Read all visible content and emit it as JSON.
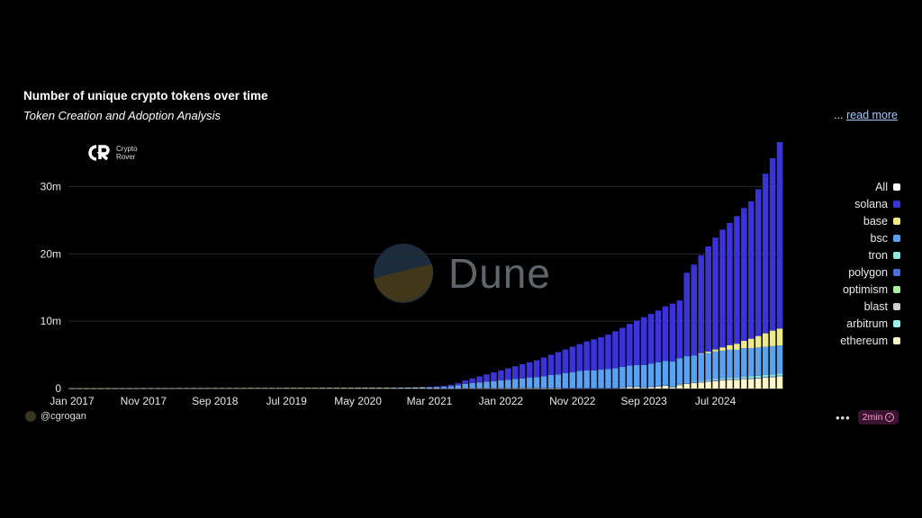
{
  "header": {
    "title": "Number of unique crypto tokens over time",
    "subtitle": "Token Creation and Adoption Analysis",
    "more_prefix": "...",
    "read_more": "read more"
  },
  "logo": {
    "line1": "Crypto",
    "line2": "Rover"
  },
  "watermark": {
    "text": "Dune"
  },
  "footer": {
    "author": "@cgrogan",
    "more": "•••",
    "badge": "2min"
  },
  "colors": {
    "background": "#000000",
    "All": "#ffffff",
    "solana": "#3a33d6",
    "base": "#eeea86",
    "bsc": "#5aa1f0",
    "tron": "#8fe6dd",
    "polygon": "#4a6fd8",
    "optimism": "#a6f0a0",
    "blast": "#cfcfcf",
    "arbitrum": "#9af2ee",
    "ethereum": "#fdf6c6"
  },
  "chart_data": {
    "type": "bar",
    "stacked": true,
    "title": "Number of unique crypto tokens over time",
    "subtitle": "Token Creation and Adoption Analysis",
    "x_start": "2017-01",
    "x_step": "1 month",
    "x_tick_labels": [
      "Jan 2017",
      "Nov 2017",
      "Sep 2018",
      "Jul 2019",
      "May 2020",
      "Mar 2021",
      "Jan 2022",
      "Nov 2022",
      "Sep 2023",
      "Jul 2024"
    ],
    "y_ticks": [
      0,
      10000000,
      20000000,
      30000000
    ],
    "y_tick_labels": [
      "0",
      "10m",
      "20m",
      "30m"
    ],
    "ylim": [
      0,
      37000000
    ],
    "grid": true,
    "legend": [
      "All",
      "solana",
      "base",
      "bsc",
      "tron",
      "polygon",
      "optimism",
      "blast",
      "arbitrum",
      "ethereum"
    ],
    "legend_placement": "right",
    "totals_millions": [
      0.02,
      0.02,
      0.02,
      0.02,
      0.02,
      0.03,
      0.03,
      0.03,
      0.03,
      0.03,
      0.04,
      0.04,
      0.04,
      0.04,
      0.04,
      0.05,
      0.05,
      0.05,
      0.05,
      0.05,
      0.06,
      0.06,
      0.06,
      0.06,
      0.06,
      0.07,
      0.07,
      0.07,
      0.07,
      0.07,
      0.08,
      0.08,
      0.08,
      0.08,
      0.08,
      0.09,
      0.09,
      0.09,
      0.09,
      0.09,
      0.1,
      0.1,
      0.1,
      0.1,
      0.1,
      0.12,
      0.13,
      0.15,
      0.17,
      0.2,
      0.25,
      0.3,
      0.4,
      0.55,
      0.8,
      1.2,
      1.5,
      1.8,
      2.1,
      2.4,
      2.7,
      3.0,
      3.3,
      3.6,
      3.9,
      4.2,
      4.6,
      5.0,
      5.4,
      5.8,
      6.2,
      6.6,
      7.0,
      7.3,
      7.6,
      8.0,
      8.5,
      9.0,
      9.6,
      10.1,
      10.6,
      11.1,
      11.6,
      12.2,
      12.6,
      13.1,
      17.2,
      18.4,
      19.8,
      21.1,
      22.4,
      23.6,
      24.6,
      25.6,
      26.8,
      27.8,
      29.6,
      31.9,
      34.2,
      36.6
    ],
    "series": [
      {
        "name": "solana",
        "values_millions": [
          0,
          0,
          0,
          0,
          0,
          0,
          0,
          0,
          0,
          0,
          0,
          0,
          0,
          0,
          0,
          0,
          0,
          0,
          0,
          0,
          0,
          0,
          0,
          0,
          0,
          0,
          0,
          0,
          0,
          0,
          0,
          0,
          0,
          0,
          0,
          0,
          0,
          0,
          0,
          0,
          0,
          0,
          0,
          0,
          0,
          0,
          0,
          0,
          0,
          0,
          0.05,
          0.1,
          0.15,
          0.2,
          0.3,
          0.5,
          0.7,
          0.9,
          1.1,
          1.3,
          1.5,
          1.7,
          1.9,
          2.1,
          2.3,
          2.5,
          2.8,
          3.0,
          3.3,
          3.5,
          3.8,
          4.0,
          4.3,
          4.6,
          4.8,
          5.1,
          5.5,
          5.8,
          6.2,
          6.6,
          7.0,
          7.3,
          7.6,
          8.0,
          8.2,
          8.5,
          12.1,
          13.2,
          14.3,
          15.3,
          16.2,
          17.0,
          17.7,
          18.4,
          19.2,
          19.9,
          21.4,
          23.2,
          25.2,
          27.3
        ]
      },
      {
        "name": "base",
        "values_millions": [
          0,
          0,
          0,
          0,
          0,
          0,
          0,
          0,
          0,
          0,
          0,
          0,
          0,
          0,
          0,
          0,
          0,
          0,
          0,
          0,
          0,
          0,
          0,
          0,
          0,
          0,
          0,
          0,
          0,
          0,
          0,
          0,
          0,
          0,
          0,
          0,
          0,
          0,
          0,
          0,
          0,
          0,
          0,
          0,
          0,
          0,
          0,
          0,
          0,
          0,
          0,
          0,
          0,
          0,
          0,
          0,
          0,
          0,
          0,
          0,
          0,
          0,
          0,
          0,
          0,
          0,
          0,
          0,
          0,
          0,
          0,
          0,
          0,
          0,
          0,
          0,
          0,
          0,
          0,
          0,
          0,
          0,
          0,
          0,
          0,
          0,
          0,
          0,
          0.1,
          0.2,
          0.3,
          0.5,
          0.7,
          0.9,
          1.1,
          1.4,
          1.7,
          2.0,
          2.3,
          2.5
        ]
      },
      {
        "name": "bsc",
        "values_millions": [
          0,
          0,
          0,
          0,
          0,
          0,
          0,
          0,
          0,
          0,
          0,
          0,
          0,
          0,
          0,
          0,
          0,
          0,
          0,
          0,
          0,
          0,
          0,
          0,
          0,
          0,
          0,
          0,
          0,
          0,
          0,
          0,
          0,
          0,
          0,
          0,
          0,
          0,
          0,
          0,
          0,
          0,
          0,
          0,
          0,
          0.02,
          0.03,
          0.05,
          0.07,
          0.1,
          0.15,
          0.15,
          0.2,
          0.3,
          0.45,
          0.6,
          0.7,
          0.8,
          0.9,
          1.0,
          1.1,
          1.2,
          1.3,
          1.4,
          1.5,
          1.6,
          1.7,
          1.9,
          2.0,
          2.2,
          2.3,
          2.5,
          2.6,
          2.6,
          2.7,
          2.8,
          2.9,
          3.0,
          3.1,
          3.2,
          3.3,
          3.4,
          3.5,
          3.6,
          3.7,
          3.8,
          3.9,
          3.9,
          4.0,
          4.0,
          4.1,
          4.1,
          4.1,
          4.1,
          4.2,
          4.2,
          4.2,
          4.2,
          4.2,
          4.2
        ]
      },
      {
        "name": "tron",
        "values_millions": [
          0,
          0,
          0,
          0,
          0,
          0,
          0,
          0,
          0,
          0,
          0,
          0,
          0,
          0,
          0,
          0,
          0,
          0,
          0,
          0,
          0,
          0,
          0,
          0,
          0,
          0,
          0,
          0,
          0,
          0,
          0,
          0,
          0,
          0,
          0,
          0,
          0,
          0,
          0,
          0,
          0,
          0,
          0,
          0,
          0,
          0,
          0,
          0,
          0,
          0,
          0,
          0,
          0,
          0,
          0,
          0,
          0,
          0,
          0,
          0,
          0,
          0,
          0,
          0,
          0,
          0,
          0,
          0,
          0,
          0,
          0,
          0,
          0,
          0,
          0,
          0,
          0,
          0,
          0,
          0,
          0,
          0,
          0,
          0,
          0.05,
          0.1,
          0.1,
          0.12,
          0.15,
          0.18,
          0.2,
          0.22,
          0.25,
          0.25,
          0.28,
          0.3,
          0.3,
          0.3,
          0.3,
          0.3
        ]
      },
      {
        "name": "polygon",
        "values_millions": [
          0,
          0,
          0,
          0,
          0,
          0,
          0,
          0,
          0,
          0,
          0,
          0,
          0,
          0,
          0,
          0,
          0,
          0,
          0,
          0,
          0,
          0,
          0,
          0,
          0,
          0,
          0,
          0,
          0,
          0,
          0,
          0,
          0,
          0,
          0,
          0,
          0,
          0,
          0,
          0,
          0,
          0,
          0,
          0,
          0,
          0,
          0,
          0,
          0,
          0,
          0,
          0,
          0.01,
          0.02,
          0.02,
          0.03,
          0.04,
          0.05,
          0.05,
          0.06,
          0.06,
          0.07,
          0.07,
          0.08,
          0.08,
          0.08,
          0.09,
          0.09,
          0.09,
          0.1,
          0.1,
          0.1,
          0.1,
          0.1,
          0.1,
          0.1,
          0.1,
          0.1,
          0.1,
          0.1,
          0.1,
          0.1,
          0.1,
          0.1,
          0.1,
          0.1,
          0.1,
          0.1,
          0.1,
          0.1,
          0.1,
          0.1,
          0.1,
          0.1,
          0.1,
          0.1,
          0.1,
          0.1,
          0.1,
          0.1
        ]
      },
      {
        "name": "ethereum",
        "values_millions": [
          0.02,
          0.02,
          0.02,
          0.02,
          0.02,
          0.03,
          0.03,
          0.03,
          0.03,
          0.03,
          0.04,
          0.04,
          0.04,
          0.04,
          0.04,
          0.05,
          0.05,
          0.05,
          0.05,
          0.05,
          0.06,
          0.06,
          0.06,
          0.06,
          0.06,
          0.07,
          0.07,
          0.07,
          0.07,
          0.07,
          0.08,
          0.08,
          0.08,
          0.08,
          0.08,
          0.09,
          0.09,
          0.09,
          0.09,
          0.09,
          0.1,
          0.1,
          0.1,
          0.1,
          0.1,
          0.1,
          0.1,
          0.1,
          0.1,
          0.1,
          0.05,
          0.05,
          0.04,
          0.03,
          0.03,
          0.07,
          0.06,
          0.05,
          0.05,
          0.04,
          0.04,
          0.03,
          0.03,
          0.02,
          0.02,
          0.02,
          0.01,
          0.01,
          0.01,
          0,
          0,
          0,
          0,
          0,
          0,
          0,
          0,
          0.1,
          0.2,
          0.2,
          0.1,
          0.2,
          0.3,
          0.4,
          0.15,
          0.5,
          0.7,
          0.8,
          0.9,
          1.0,
          1.1,
          1.2,
          1.3,
          1.3,
          1.4,
          1.4,
          1.5,
          1.6,
          1.7,
          1.8
        ]
      }
    ]
  }
}
